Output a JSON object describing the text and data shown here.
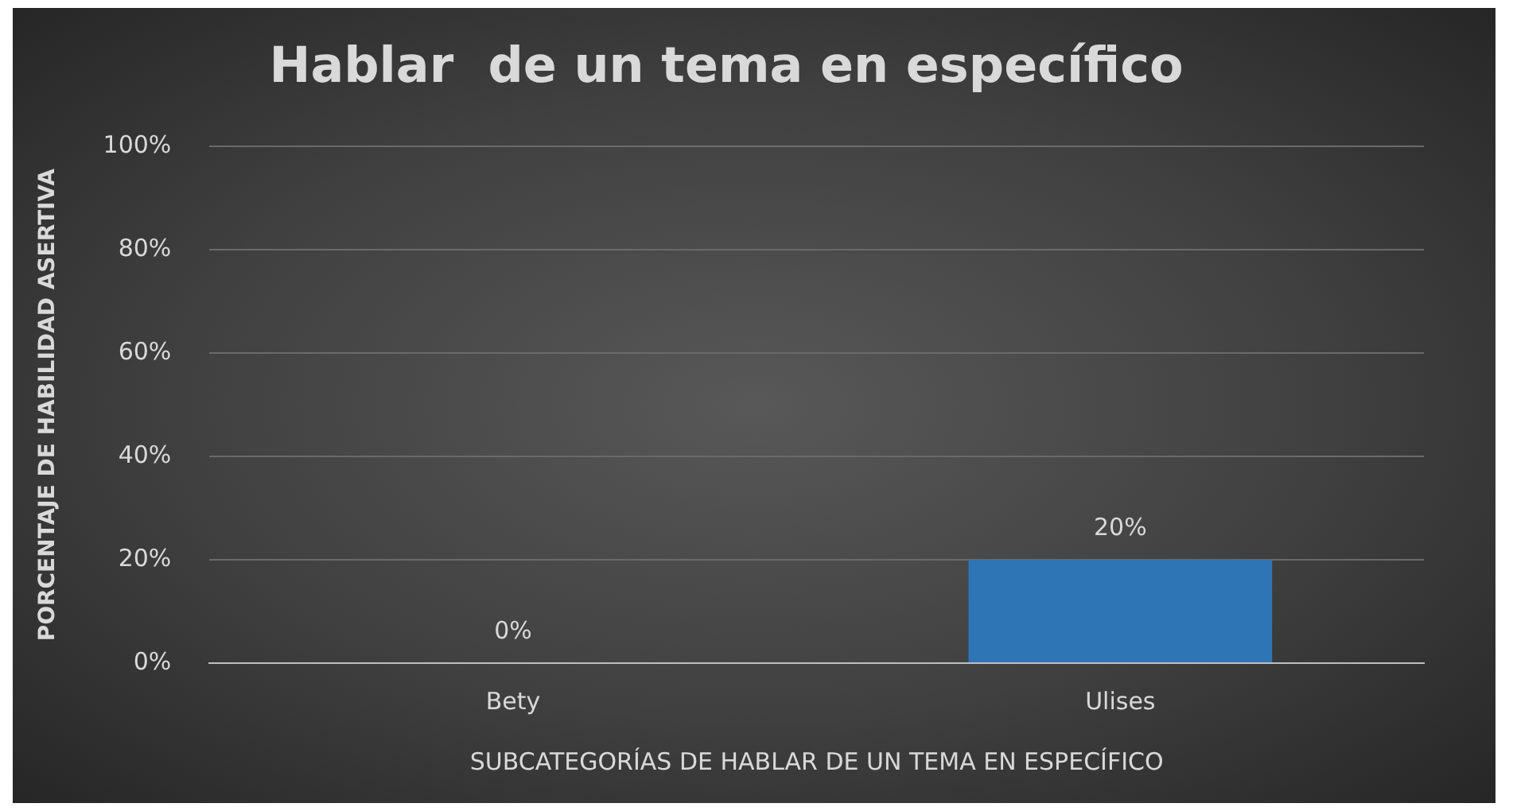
{
  "chart_data": {
    "type": "bar",
    "title": "Hablar  de un tema en específico",
    "xlabel": "SUBCATEGORÍAS DE HABLAR DE UN TEMA EN ESPECÍFICO",
    "ylabel": "PORCENTAJE DE HABILIDAD ASERTIVA",
    "categories": [
      "Bety",
      "Ulises"
    ],
    "values": [
      0,
      20
    ],
    "color": "#2e75b6",
    "value_labels": [
      "0%",
      "20%"
    ],
    "ylim": [
      0,
      100
    ],
    "yticks": [
      {
        "value": 0,
        "label": "0%"
      },
      {
        "value": 20,
        "label": "20%"
      },
      {
        "value": 40,
        "label": "40%"
      },
      {
        "value": 60,
        "label": "60%"
      },
      {
        "value": 80,
        "label": "80%"
      },
      {
        "value": 100,
        "label": "100%"
      }
    ],
    "grid": "y",
    "legend": false
  }
}
